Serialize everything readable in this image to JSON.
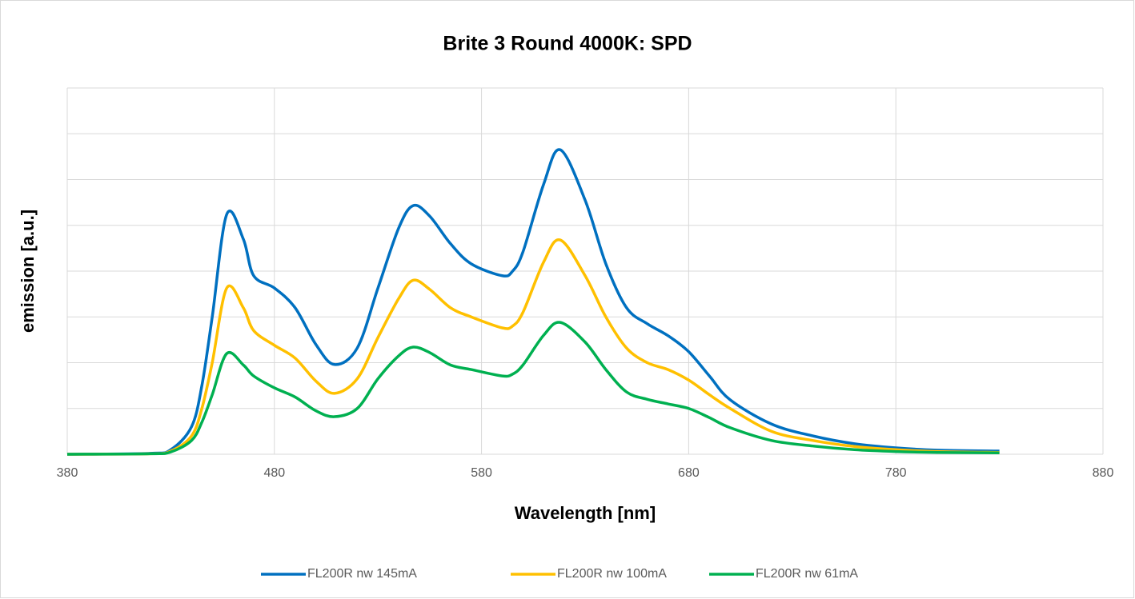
{
  "chart_data": {
    "type": "line",
    "title": "Brite 3 Round 4000K: SPD",
    "x_label": "Wavelength [nm]",
    "y_label": "emission [a.u.]",
    "x": [
      380,
      420,
      430,
      440,
      445,
      450,
      457,
      465,
      470,
      480,
      490,
      500,
      509,
      520,
      530,
      540,
      547,
      555,
      565,
      575,
      590,
      595,
      600,
      610,
      618,
      630,
      640,
      650,
      660,
      670,
      680,
      690,
      700,
      720,
      740,
      760,
      780,
      800,
      830
    ],
    "series": [
      {
        "name": "FL200R nw 145mA",
        "color": "#0070c0",
        "values": [
          0,
          0.02,
          0.1,
          0.6,
          1.5,
          3,
          5.24,
          4.7,
          3.9,
          3.63,
          3.2,
          2.4,
          1.96,
          2.32,
          3.63,
          4.94,
          5.43,
          5.2,
          4.6,
          4.16,
          3.9,
          4.0,
          4.42,
          5.9,
          6.65,
          5.55,
          4.16,
          3.2,
          2.85,
          2.59,
          2.24,
          1.71,
          1.19,
          0.66,
          0.4,
          0.23,
          0.14,
          0.09,
          0.07
        ]
      },
      {
        "name": "FL200R nw 100mA",
        "color": "#ffc000",
        "values": [
          0,
          0.01,
          0.07,
          0.4,
          1.0,
          2.0,
          3.63,
          3.2,
          2.7,
          2.38,
          2.1,
          1.6,
          1.33,
          1.65,
          2.55,
          3.4,
          3.8,
          3.6,
          3.2,
          3.0,
          2.76,
          2.8,
          3.1,
          4.2,
          4.68,
          3.9,
          3.0,
          2.32,
          2.0,
          1.85,
          1.62,
          1.3,
          1.0,
          0.5,
          0.3,
          0.17,
          0.1,
          0.06,
          0.04
        ]
      },
      {
        "name": "FL200R nw 61mA",
        "color": "#00b050",
        "values": [
          0,
          0.01,
          0.05,
          0.3,
          0.7,
          1.3,
          2.2,
          1.95,
          1.71,
          1.45,
          1.25,
          0.95,
          0.82,
          1.0,
          1.65,
          2.15,
          2.34,
          2.22,
          1.95,
          1.85,
          1.71,
          1.75,
          1.95,
          2.6,
          2.88,
          2.45,
          1.85,
          1.36,
          1.2,
          1.1,
          1.0,
          0.8,
          0.58,
          0.3,
          0.18,
          0.1,
          0.06,
          0.04,
          0.03
        ]
      }
    ],
    "xlim": [
      380,
      880
    ],
    "xticks": [
      380,
      480,
      580,
      680,
      780,
      880
    ],
    "ylim": [
      0,
      8
    ],
    "yticks": [
      0,
      1,
      2,
      3,
      4,
      5,
      6,
      7,
      8
    ],
    "grid": true,
    "legend": "bottom"
  }
}
